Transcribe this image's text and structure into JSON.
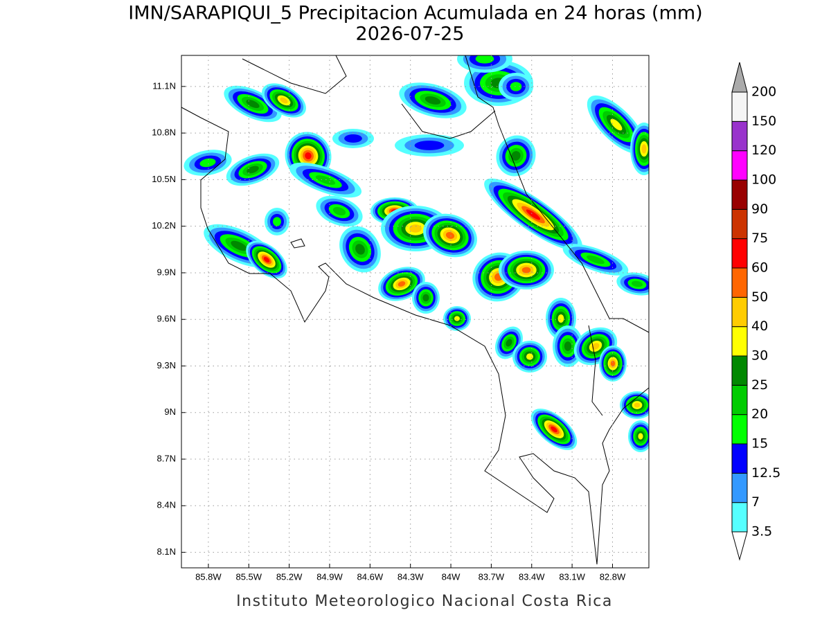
{
  "header": {
    "title": "IMN/SARAPIQUI_5 Precipitacion Acumulada en 24 horas (mm)",
    "subtitle": "2026-07-25"
  },
  "map": {
    "xlim": [
      -86.0,
      -82.53
    ],
    "ylim": [
      8.0,
      11.3
    ],
    "xticks": [
      {
        "value": -85.8,
        "label": "85.8W"
      },
      {
        "value": -85.5,
        "label": "85.5W"
      },
      {
        "value": -85.2,
        "label": "85.2W"
      },
      {
        "value": -84.9,
        "label": "84.9W"
      },
      {
        "value": -84.6,
        "label": "84.6W"
      },
      {
        "value": -84.3,
        "label": "84.3W"
      },
      {
        "value": -84.0,
        "label": "84W"
      },
      {
        "value": -83.7,
        "label": "83.7W"
      },
      {
        "value": -83.4,
        "label": "83.4W"
      },
      {
        "value": -83.1,
        "label": "83.1W"
      },
      {
        "value": -82.8,
        "label": "82.8W"
      }
    ],
    "yticks": [
      {
        "value": 8.1,
        "label": "8.1N"
      },
      {
        "value": 8.4,
        "label": "8.4N"
      },
      {
        "value": 8.7,
        "label": "8.7N"
      },
      {
        "value": 9.0,
        "label": "9N"
      },
      {
        "value": 9.3,
        "label": "9.3N"
      },
      {
        "value": 9.6,
        "label": "9.6N"
      },
      {
        "value": 9.9,
        "label": "9.9N"
      },
      {
        "value": 10.2,
        "label": "10.2N"
      },
      {
        "value": 10.5,
        "label": "10.5N"
      },
      {
        "value": 10.8,
        "label": "10.8N"
      },
      {
        "value": 11.1,
        "label": "11.1N"
      }
    ],
    "grid": true
  },
  "colorbar": {
    "levels": [
      3.5,
      7,
      12.5,
      15,
      20,
      25,
      30,
      40,
      50,
      60,
      75,
      90,
      100,
      120,
      150,
      200
    ],
    "colors": [
      "#55ffff",
      "#3399ff",
      "#0000ff",
      "#00ff00",
      "#00cc00",
      "#008800",
      "#ffff00",
      "#ffcc00",
      "#ff6600",
      "#ff0000",
      "#cc3300",
      "#990000",
      "#ff00ff",
      "#9933cc",
      "#f5f5f5"
    ],
    "under_color": "#ffffff",
    "over_color": "#aaaaaa"
  },
  "footer": {
    "credit": "Instituto Meteorologico Nacional Costa Rica"
  }
}
